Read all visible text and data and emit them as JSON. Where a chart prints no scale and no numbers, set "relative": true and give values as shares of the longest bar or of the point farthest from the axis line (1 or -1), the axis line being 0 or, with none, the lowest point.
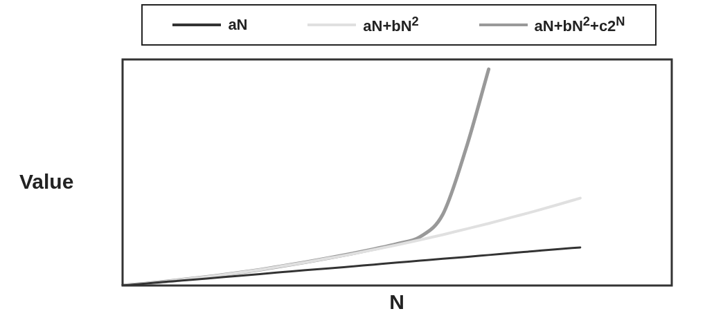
{
  "chart_data": {
    "type": "line",
    "relative": true,
    "xlabel": "N",
    "ylabel": "Value",
    "legend": "top",
    "grid": false,
    "marker": "none",
    "line_style": "solid",
    "categories": [
      null,
      null,
      null,
      null,
      null,
      null,
      null,
      null,
      null,
      null,
      null,
      null,
      null,
      null,
      null,
      null,
      null,
      null,
      null,
      null,
      null,
      null,
      null,
      null,
      null
    ],
    "series": [
      {
        "name": "aN",
        "color": "#333333",
        "values": [
          0,
          0.009,
          0.018,
          0.026,
          0.035,
          0.044,
          0.053,
          0.062,
          0.071,
          0.079,
          0.088,
          0.097,
          0.106,
          0.115,
          0.124,
          0.132,
          0.141,
          0.15,
          0.159,
          0.168,
          0.176,
          null,
          null,
          null,
          null
        ]
      },
      {
        "name": "aN+bN$^{2}$",
        "color": "#e0e0e0",
        "values": [
          0,
          0.009,
          0.02,
          0.032,
          0.044,
          0.058,
          0.073,
          0.09,
          0.107,
          0.126,
          0.145,
          0.166,
          0.188,
          0.211,
          0.235,
          0.261,
          0.287,
          0.315,
          0.343,
          0.373,
          0.404,
          null,
          null,
          null,
          null
        ]
      },
      {
        "name": "aN+bN$^{2}$+c2$^{N}$",
        "color": "#999999",
        "values": [
          0,
          0.009,
          0.02,
          0.032,
          0.044,
          0.058,
          0.073,
          0.09,
          0.108,
          0.127,
          0.147,
          0.169,
          0.193,
          0.225,
          0.33,
          0.63,
          1,
          null,
          null,
          null,
          null,
          null,
          null,
          null,
          null
        ]
      }
    ]
  }
}
